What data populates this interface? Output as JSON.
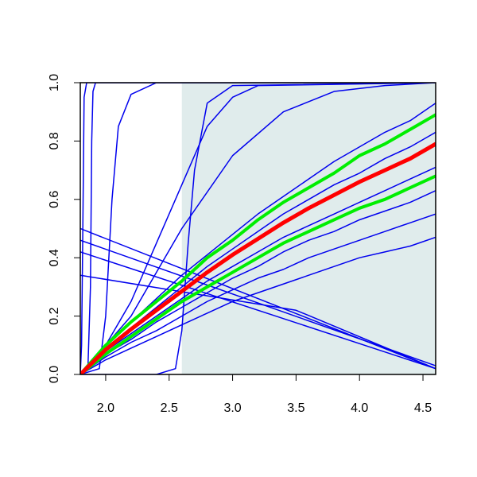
{
  "chart_data": {
    "type": "line",
    "xlim": [
      1.8,
      4.6
    ],
    "ylim": [
      0,
      1
    ],
    "xticks": [
      {
        "value": 2,
        "label": "2.0"
      },
      2.5,
      {
        "value": 3,
        "label": "3.0"
      },
      3.5,
      {
        "value": 4,
        "label": "4.0"
      },
      4.5
    ],
    "yticks": [
      {
        "value": 0,
        "label": "0.0"
      },
      0.2,
      0.4,
      0.6,
      0.8,
      {
        "value": 1,
        "label": "1.0"
      }
    ],
    "shade": {
      "xlim": [
        2.6,
        4.6
      ],
      "color": "#e0ecec"
    },
    "x": [
      1.8,
      2.0,
      2.2,
      2.4,
      2.6,
      2.8,
      3.0,
      3.2,
      3.4,
      3.6,
      3.8,
      4.0,
      4.2,
      4.4,
      4.6
    ],
    "series": [
      {
        "color": "#0000ee",
        "linewidth": 1.5,
        "values": [
          0,
          0.05,
          0.09,
          0.13,
          0.17,
          0.21,
          0.25,
          0.28,
          0.31,
          0.34,
          0.37,
          0.4,
          0.42,
          0.44,
          0.47
        ]
      },
      {
        "color": "#0000ee",
        "linewidth": 1.5,
        "values": [
          0,
          0.06,
          0.11,
          0.15,
          0.2,
          0.25,
          0.29,
          0.33,
          0.36,
          0.4,
          0.43,
          0.46,
          0.49,
          0.52,
          0.55
        ]
      },
      {
        "color": "#0000ee",
        "linewidth": 1.5,
        "values": [
          0,
          0.07,
          0.12,
          0.18,
          0.23,
          0.28,
          0.33,
          0.37,
          0.42,
          0.46,
          0.49,
          0.53,
          0.56,
          0.59,
          0.63
        ]
      },
      {
        "color": "#0000ee",
        "linewidth": 1.5,
        "values": [
          0,
          0.08,
          0.14,
          0.2,
          0.26,
          0.32,
          0.37,
          0.42,
          0.47,
          0.51,
          0.55,
          0.59,
          0.63,
          0.67,
          0.71
        ]
      },
      {
        "color": "#0000ee",
        "linewidth": 1.5,
        "values": [
          0,
          0.09,
          0.16,
          0.23,
          0.3,
          0.37,
          0.43,
          0.49,
          0.55,
          0.6,
          0.65,
          0.69,
          0.74,
          0.78,
          0.83
        ]
      },
      {
        "color": "#0000ee",
        "linewidth": 1.5,
        "values": [
          0,
          0.1,
          0.18,
          0.26,
          0.34,
          0.41,
          0.48,
          0.55,
          0.61,
          0.67,
          0.73,
          0.78,
          0.83,
          0.87,
          0.93
        ]
      },
      {
        "color": "#0000ee",
        "linewidth": 1.5,
        "x": [
          1.8,
          1.81,
          1.82,
          1.83,
          1.85,
          4.6
        ],
        "values": [
          0,
          0.1,
          0.5,
          0.95,
          1,
          1
        ]
      },
      {
        "color": "#0000ee",
        "linewidth": 1.5,
        "x": [
          1.8,
          1.86,
          1.88,
          1.89,
          1.9,
          1.92,
          4.6
        ],
        "values": [
          0,
          0.02,
          0.3,
          0.8,
          0.97,
          1,
          1
        ]
      },
      {
        "color": "#0000ee",
        "linewidth": 1.5,
        "x": [
          1.8,
          1.95,
          2.0,
          2.05,
          2.1,
          2.2,
          2.4,
          4.6
        ],
        "values": [
          0,
          0.02,
          0.2,
          0.6,
          0.85,
          0.96,
          1,
          1
        ]
      },
      {
        "color": "#0000ee",
        "linewidth": 1.5,
        "x": [
          1.8,
          2.4,
          2.55,
          2.6,
          2.65,
          2.7,
          2.8,
          3.0,
          4.6
        ],
        "values": [
          0,
          0,
          0.02,
          0.15,
          0.45,
          0.7,
          0.93,
          0.99,
          1
        ]
      },
      {
        "color": "#0000ee",
        "linewidth": 1.5,
        "x": [
          1.8,
          2.0,
          2.2,
          2.4,
          2.6,
          2.8,
          3.0,
          3.2,
          4.6
        ],
        "values": [
          0,
          0.1,
          0.25,
          0.45,
          0.65,
          0.85,
          0.95,
          0.99,
          1
        ]
      },
      {
        "color": "#0000ee",
        "linewidth": 1.5,
        "x": [
          1.8,
          2.2,
          2.6,
          3.0,
          3.4,
          3.8,
          4.2,
          4.6
        ],
        "values": [
          0,
          0.2,
          0.5,
          0.75,
          0.9,
          0.97,
          0.99,
          1
        ]
      },
      {
        "color": "#0000ee",
        "linewidth": 1.5,
        "x": [
          1.8,
          4.6
        ],
        "values": [
          0.5,
          0.02
        ]
      },
      {
        "color": "#0000ee",
        "linewidth": 1.5,
        "x": [
          1.8,
          4.6
        ],
        "values": [
          0.46,
          0.03
        ]
      },
      {
        "color": "#0000ee",
        "linewidth": 1.5,
        "x": [
          1.8,
          4.6
        ],
        "values": [
          0.42,
          0.02
        ]
      },
      {
        "color": "#0000ee",
        "linewidth": 1.5,
        "x": [
          1.8,
          3.5,
          4.6
        ],
        "values": [
          0.34,
          0.22,
          0.02
        ]
      },
      {
        "color": "#00ee00",
        "linewidth": 4,
        "values": [
          0,
          0.07,
          0.13,
          0.19,
          0.25,
          0.3,
          0.35,
          0.4,
          0.45,
          0.49,
          0.53,
          0.57,
          0.6,
          0.64,
          0.68
        ]
      },
      {
        "color": "#00ee00",
        "linewidth": 4,
        "values": [
          0,
          0.1,
          0.18,
          0.25,
          0.32,
          0.4,
          0.46,
          0.53,
          0.59,
          0.64,
          0.69,
          0.75,
          0.79,
          0.84,
          0.89
        ]
      },
      {
        "color": "#ff0000",
        "linewidth": 5,
        "values": [
          0,
          0.085,
          0.155,
          0.22,
          0.285,
          0.35,
          0.41,
          0.465,
          0.52,
          0.57,
          0.615,
          0.66,
          0.7,
          0.74,
          0.79
        ]
      }
    ]
  }
}
